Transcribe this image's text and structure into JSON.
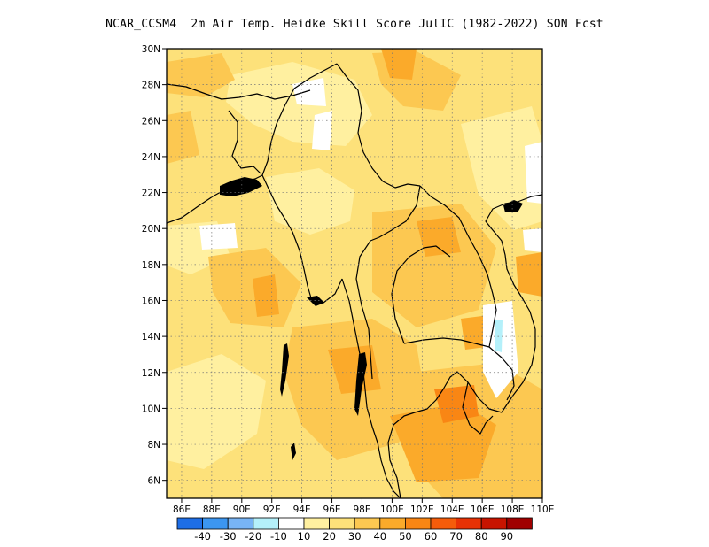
{
  "title": "NCAR_CCSM4  2m Air Temp. Heidke Skill Score JulIC (1982-2022) SON Fcst",
  "map": {
    "lon_range": [
      85,
      110
    ],
    "lat_range": [
      5,
      30
    ],
    "lon_ticks": [
      {
        "value": 86,
        "label": "86E"
      },
      {
        "value": 88,
        "label": "88E"
      },
      {
        "value": 90,
        "label": "90E"
      },
      {
        "value": 92,
        "label": "92E"
      },
      {
        "value": 94,
        "label": "94E"
      },
      {
        "value": 96,
        "label": "96E"
      },
      {
        "value": 98,
        "label": "98E"
      },
      {
        "value": 100,
        "label": "100E"
      },
      {
        "value": 102,
        "label": "102E"
      },
      {
        "value": 104,
        "label": "104E"
      },
      {
        "value": 106,
        "label": "106E"
      },
      {
        "value": 108,
        "label": "108E"
      },
      {
        "value": 110,
        "label": "110E"
      }
    ],
    "lat_ticks": [
      {
        "value": 6,
        "label": "6N"
      },
      {
        "value": 8,
        "label": "8N"
      },
      {
        "value": 10,
        "label": "10N"
      },
      {
        "value": 12,
        "label": "12N"
      },
      {
        "value": 14,
        "label": "14N"
      },
      {
        "value": 16,
        "label": "16N"
      },
      {
        "value": 18,
        "label": "18N"
      },
      {
        "value": 20,
        "label": "20N"
      },
      {
        "value": 22,
        "label": "22N"
      },
      {
        "value": 24,
        "label": "24N"
      },
      {
        "value": 26,
        "label": "26N"
      },
      {
        "value": 28,
        "label": "28N"
      },
      {
        "value": 30,
        "label": "30N"
      }
    ],
    "grid": "dotted"
  },
  "colorbar": {
    "colors": [
      "#1e6ee6",
      "#3c96f0",
      "#78b4f5",
      "#b4f0fa",
      "#ffffff",
      "#fff0a0",
      "#fde17a",
      "#fcc851",
      "#fbaa2a",
      "#f98614",
      "#f55c0a",
      "#e83205",
      "#c81400",
      "#a00000"
    ],
    "labels": [
      "-40",
      "-30",
      "-20",
      "-10",
      "10",
      "20",
      "30",
      "40",
      "50",
      "60",
      "70",
      "80",
      "90"
    ]
  }
}
